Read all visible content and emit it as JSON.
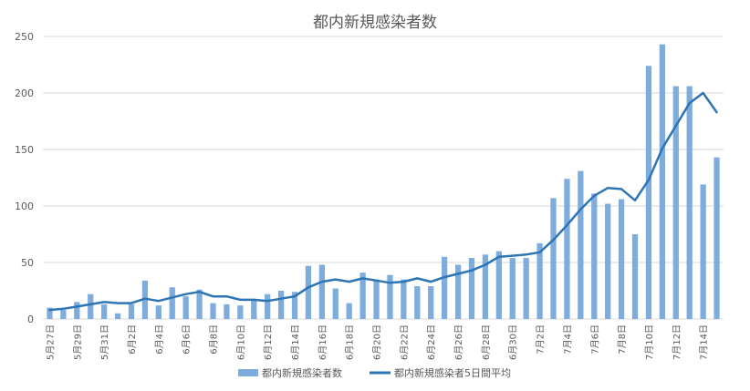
{
  "chart_data": {
    "type": "bar",
    "title": "都内新規感染者数",
    "xlabel": "",
    "ylabel": "",
    "ylim": [
      0,
      250
    ],
    "yticks": [
      0,
      50,
      100,
      150,
      200,
      250
    ],
    "grid": true,
    "legend_position": "bottom",
    "categories": [
      "5月27日",
      "5月28日",
      "5月29日",
      "5月30日",
      "5月31日",
      "6月1日",
      "6月2日",
      "6月3日",
      "6月4日",
      "6月5日",
      "6月6日",
      "6月7日",
      "6月8日",
      "6月9日",
      "6月10日",
      "6月11日",
      "6月12日",
      "6月13日",
      "6月14日",
      "6月15日",
      "6月16日",
      "6月17日",
      "6月18日",
      "6月19日",
      "6月20日",
      "6月21日",
      "6月22日",
      "6月23日",
      "6月24日",
      "6月25日",
      "6月26日",
      "6月27日",
      "6月28日",
      "6月29日",
      "6月30日",
      "7月1日",
      "7月2日",
      "7月3日",
      "7月4日",
      "7月5日",
      "7月6日",
      "7月7日",
      "7月8日",
      "7月9日",
      "7月10日",
      "7月11日",
      "7月12日",
      "7月13日",
      "7月14日",
      "7月15日"
    ],
    "xtick_labels": [
      "5月27日",
      "5月29日",
      "5月31日",
      "6月2日",
      "6月4日",
      "6月6日",
      "6月8日",
      "6月10日",
      "6月12日",
      "6月14日",
      "6月16日",
      "6月18日",
      "6月20日",
      "6月22日",
      "6月24日",
      "6月26日",
      "6月28日",
      "6月30日",
      "7月2日",
      "7月4日",
      "7月6日",
      "7月8日",
      "7月10日",
      "7月12日",
      "7月14日"
    ],
    "series": [
      {
        "name": "都内新規感染者数",
        "type": "bar",
        "color": "#7eacdd",
        "values": [
          10,
          8,
          15,
          22,
          13,
          5,
          13,
          34,
          12,
          28,
          20,
          26,
          14,
          13,
          12,
          17,
          22,
          25,
          24,
          47,
          48,
          27,
          14,
          41,
          35,
          39,
          35,
          29,
          29,
          55,
          48,
          54,
          57,
          60,
          54,
          54,
          67,
          107,
          124,
          131,
          111,
          102,
          106,
          75,
          224,
          243,
          206,
          206,
          119,
          143
        ]
      },
      {
        "name": "都内新規感染者5日間平均",
        "type": "line",
        "color": "#2e75b6",
        "values": [
          8,
          9,
          11,
          13,
          15,
          14,
          14,
          18,
          16,
          19,
          22,
          24,
          20,
          20,
          17,
          17,
          16,
          18,
          20,
          28,
          33,
          35,
          33,
          36,
          34,
          32,
          33,
          36,
          33,
          37,
          40,
          43,
          48,
          55,
          56,
          57,
          59,
          70,
          83,
          97,
          109,
          116,
          115,
          105,
          123,
          151,
          171,
          191,
          200,
          183
        ]
      }
    ]
  }
}
